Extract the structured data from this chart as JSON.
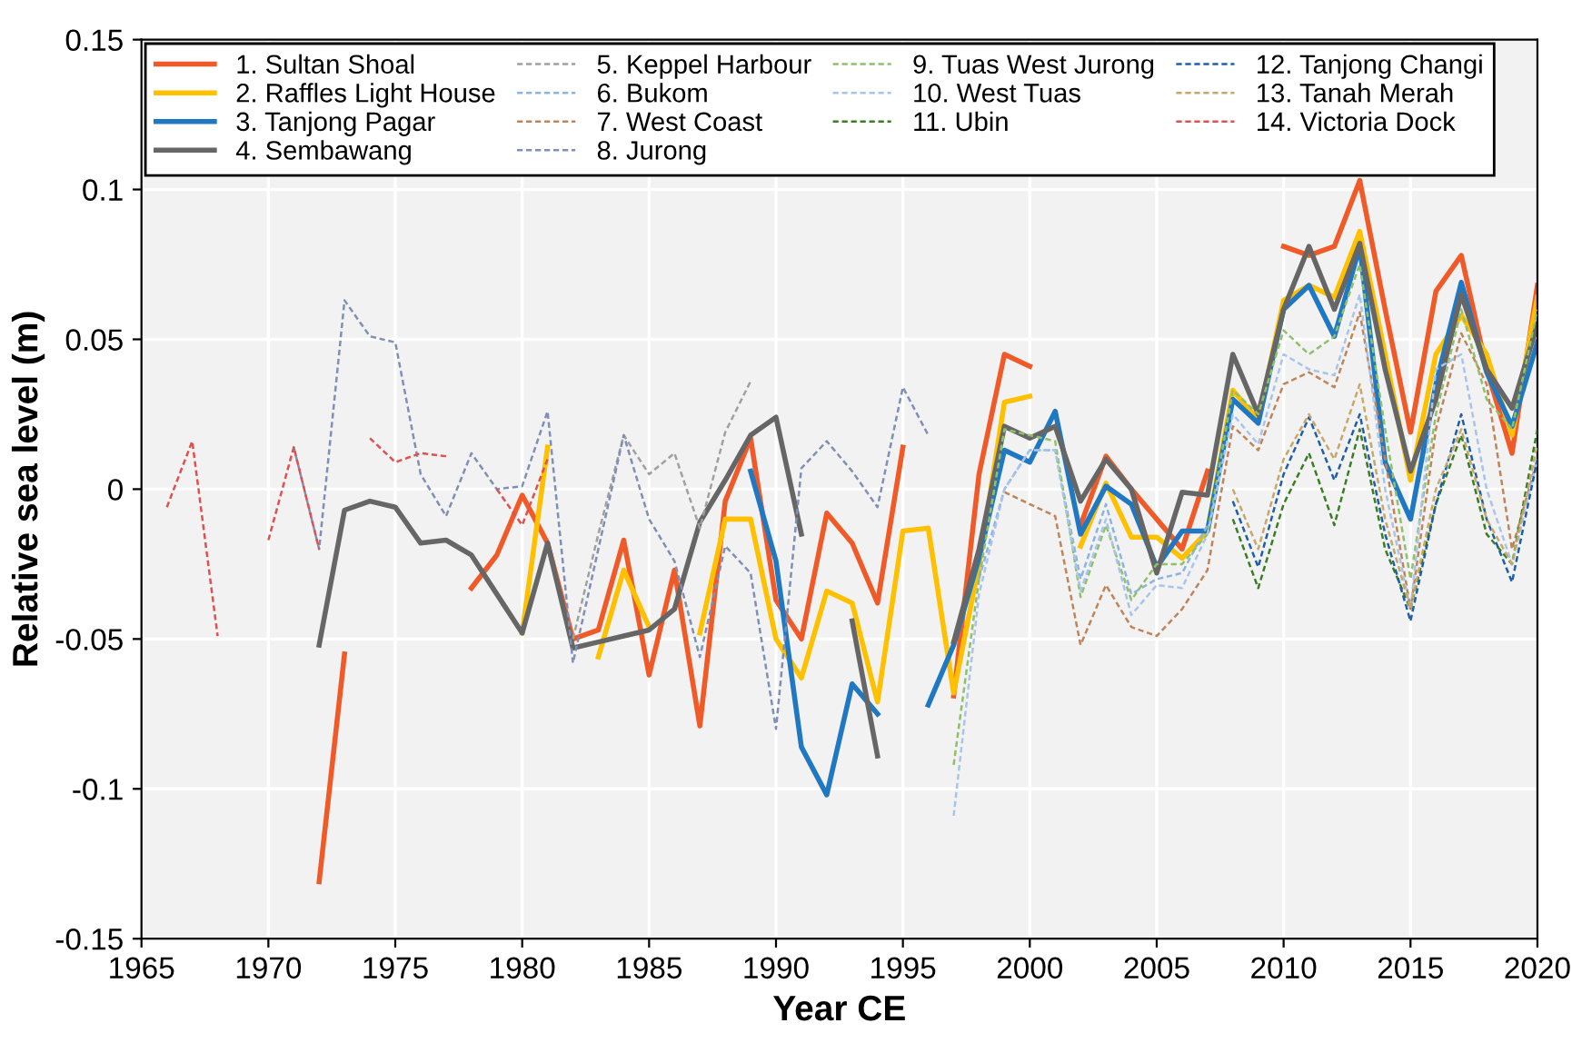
{
  "chart_data": {
    "type": "line",
    "xlabel": "Year CE",
    "ylabel": "Relative sea level (m)",
    "xlim": [
      1965,
      2020
    ],
    "ylim": [
      -0.15,
      0.15
    ],
    "xticks": [
      1965,
      1970,
      1975,
      1980,
      1985,
      1990,
      1995,
      2000,
      2005,
      2010,
      2015,
      2020
    ],
    "yticks": [
      -0.15,
      -0.1,
      -0.05,
      0,
      0.05,
      0.1,
      0.15
    ],
    "grid": true,
    "legend": "top left",
    "marker": "none",
    "series": [
      {
        "name": "1. Sultan Shoal",
        "color": "#f05a28",
        "line_style": "solid",
        "x": [
          1972,
          1973,
          1974,
          1975,
          1976,
          1977,
          1978,
          1979,
          1980,
          1981,
          1982,
          1983,
          1984,
          1985,
          1986,
          1987,
          1988,
          1989,
          1990,
          1991,
          1992,
          1993,
          1994,
          1995,
          1996,
          1997,
          1998,
          1999,
          2000,
          2001,
          2002,
          2003,
          2004,
          2005,
          2006,
          2007,
          2008,
          2009,
          2010,
          2011,
          2012,
          2013,
          2014,
          2015,
          2016,
          2017,
          2018,
          2019,
          2020
        ],
        "values": [
          -0.131,
          -0.055,
          null,
          null,
          null,
          null,
          -0.033,
          -0.022,
          -0.002,
          -0.018,
          -0.05,
          -0.047,
          -0.017,
          -0.062,
          -0.027,
          -0.079,
          -0.004,
          0.017,
          -0.037,
          -0.05,
          -0.008,
          -0.018,
          -0.038,
          0.014,
          null,
          -0.069,
          0.005,
          0.045,
          0.041,
          null,
          -0.012,
          0.011,
          0.0,
          -0.01,
          -0.02,
          0.006,
          null,
          null,
          0.081,
          0.078,
          0.081,
          0.103,
          0.06,
          0.019,
          0.066,
          0.078,
          0.04,
          0.012,
          0.068
        ]
      },
      {
        "name": "2. Raffles Light House",
        "color": "#ffc000",
        "line_style": "solid",
        "x": [
          1980,
          1981,
          1982,
          1983,
          1984,
          1985,
          1986,
          1987,
          1988,
          1989,
          1990,
          1991,
          1992,
          1993,
          1994,
          1995,
          1996,
          1997,
          1998,
          1999,
          2000,
          2001,
          2002,
          2003,
          2004,
          2005,
          2006,
          2007,
          2008,
          2009,
          2010,
          2011,
          2012,
          2013,
          2014,
          2015,
          2016,
          2017,
          2018,
          2019,
          2020
        ],
        "values": [
          -0.048,
          0.014,
          null,
          -0.056,
          -0.027,
          -0.046,
          null,
          -0.048,
          -0.01,
          -0.01,
          -0.05,
          -0.063,
          -0.034,
          -0.038,
          -0.071,
          -0.014,
          -0.013,
          -0.068,
          -0.025,
          0.029,
          0.031,
          null,
          -0.019,
          0.002,
          -0.016,
          -0.016,
          -0.023,
          -0.014,
          0.033,
          0.023,
          0.063,
          0.068,
          0.064,
          0.086,
          0.045,
          0.003,
          0.045,
          0.058,
          0.045,
          0.018,
          0.064
        ]
      },
      {
        "name": "3. Tanjong Pagar",
        "color": "#1f78c1",
        "line_style": "solid",
        "x": [
          1989,
          1990,
          1991,
          1992,
          1993,
          1994,
          1995,
          1996,
          1997,
          1998,
          1999,
          2000,
          2001,
          2002,
          2003,
          2004,
          2005,
          2006,
          2007,
          2008,
          2009,
          2010,
          2011,
          2012,
          2013,
          2014,
          2015,
          2016,
          2017,
          2018,
          2019,
          2020
        ],
        "values": [
          0.006,
          -0.024,
          -0.086,
          -0.102,
          -0.065,
          -0.075,
          null,
          -0.072,
          -0.052,
          -0.023,
          0.013,
          0.009,
          0.026,
          -0.015,
          0.001,
          -0.005,
          -0.026,
          -0.014,
          -0.014,
          0.03,
          0.022,
          0.06,
          0.068,
          0.051,
          0.081,
          0.009,
          -0.01,
          0.035,
          0.069,
          0.039,
          0.021,
          0.049
        ]
      },
      {
        "name": "4. Sembawang",
        "color": "#666666",
        "line_style": "solid",
        "x": [
          1972,
          1973,
          1974,
          1975,
          1976,
          1977,
          1978,
          1979,
          1980,
          1981,
          1982,
          1983,
          1984,
          1985,
          1986,
          1987,
          1988,
          1989,
          1990,
          1991,
          1992,
          1993,
          1994,
          1995,
          1996,
          1997,
          1998,
          1999,
          2000,
          2001,
          2002,
          2003,
          2004,
          2005,
          2006,
          2007,
          2008,
          2009,
          2010,
          2011,
          2012,
          2013,
          2014,
          2015,
          2016,
          2017,
          2018,
          2019,
          2020
        ],
        "values": [
          -0.052,
          -0.007,
          -0.004,
          -0.006,
          -0.018,
          -0.017,
          -0.022,
          -0.035,
          -0.048,
          -0.018,
          -0.053,
          -0.051,
          -0.049,
          -0.047,
          -0.04,
          -0.011,
          0.003,
          0.018,
          0.024,
          -0.015,
          null,
          -0.044,
          -0.089,
          null,
          null,
          -0.051,
          -0.02,
          0.021,
          0.017,
          0.021,
          -0.004,
          0.01,
          0.0,
          -0.028,
          -0.001,
          -0.002,
          0.045,
          0.025,
          0.06,
          0.081,
          0.06,
          0.082,
          0.04,
          0.006,
          0.03,
          0.065,
          0.04,
          0.027,
          0.055
        ]
      },
      {
        "name": "5. Keppel Harbour",
        "color": "#a0a0a0",
        "line_style": "dashed",
        "x": [
          1982,
          1983,
          1984,
          1985,
          1986,
          1987,
          1988,
          1989
        ],
        "values": [
          -0.05,
          -0.015,
          0.018,
          0.005,
          0.012,
          -0.013,
          0.019,
          0.036
        ]
      },
      {
        "name": "6. Bukom",
        "color": "#8db3e2",
        "line_style": "dashed",
        "x": [
          1998,
          1999,
          2000,
          2001,
          2002,
          2003,
          2004,
          2005,
          2006,
          2007
        ],
        "values": [
          -0.03,
          0.0,
          0.013,
          0.013,
          -0.03,
          -0.005,
          -0.035,
          -0.03,
          -0.028,
          -0.012
        ]
      },
      {
        "name": "7. West Coast",
        "color": "#c0845a",
        "line_style": "dashed",
        "x": [
          1999,
          2000,
          2001,
          2002,
          2003,
          2004,
          2005,
          2006,
          2007,
          2008,
          2009,
          2010,
          2011,
          2012,
          2013,
          2014,
          2015,
          2016,
          2017,
          2018,
          2019,
          2020
        ],
        "values": [
          -0.001,
          -0.005,
          -0.009,
          -0.052,
          -0.032,
          -0.046,
          -0.049,
          -0.04,
          -0.027,
          0.021,
          0.013,
          0.035,
          0.039,
          0.034,
          0.059,
          0.01,
          -0.04,
          0.02,
          0.052,
          0.035,
          -0.02,
          0.01
        ]
      },
      {
        "name": "8. Jurong",
        "color": "#7f8fb5",
        "line_style": "dashed",
        "x": [
          1971,
          1972,
          1973,
          1974,
          1975,
          1976,
          1977,
          1978,
          1979,
          1980,
          1981,
          1982,
          1983,
          1984,
          1985,
          1986,
          1987,
          1988,
          1989,
          1990,
          1991,
          1992,
          1993,
          1994,
          1995,
          1996
        ],
        "values": [
          0.014,
          -0.02,
          0.063,
          0.051,
          0.049,
          0.005,
          -0.009,
          0.012,
          0.0,
          0.001,
          0.026,
          -0.058,
          -0.02,
          0.018,
          -0.01,
          -0.024,
          -0.056,
          -0.019,
          -0.028,
          -0.08,
          0.007,
          0.016,
          0.006,
          -0.006,
          0.034,
          0.018
        ]
      },
      {
        "name": "9. Tuas West Jurong",
        "color": "#8fc06a",
        "line_style": "dashed",
        "x": [
          1997,
          1998,
          1999,
          2000,
          2001,
          2002,
          2003,
          2004,
          2005,
          2006,
          2007,
          2008,
          2009,
          2010,
          2011,
          2012,
          2013,
          2014,
          2015,
          2016,
          2017,
          2018,
          2019,
          2020
        ],
        "values": [
          -0.092,
          -0.03,
          0.02,
          0.018,
          0.016,
          -0.036,
          -0.012,
          -0.037,
          -0.025,
          -0.025,
          -0.015,
          0.033,
          0.025,
          0.053,
          0.045,
          0.051,
          0.075,
          0.02,
          -0.03,
          0.025,
          0.06,
          0.03,
          0.02,
          0.06
        ]
      },
      {
        "name": "10. West Tuas",
        "color": "#a9c4eb",
        "line_style": "dashed",
        "x": [
          1997,
          1998,
          1999,
          2000,
          2001,
          2002,
          2003,
          2004,
          2005,
          2006,
          2007,
          2008,
          2009,
          2010,
          2011,
          2012,
          2013,
          2014,
          2015,
          2016,
          2017,
          2018,
          2019,
          2020
        ],
        "values": [
          -0.109,
          -0.035,
          0.0,
          0.013,
          0.013,
          -0.034,
          -0.01,
          -0.042,
          -0.032,
          -0.033,
          -0.015,
          0.025,
          0.015,
          0.045,
          0.04,
          0.038,
          0.065,
          0.0,
          -0.04,
          0.04,
          0.045,
          0.0,
          -0.025,
          0.01
        ]
      },
      {
        "name": "11. Ubin",
        "color": "#3a7d22",
        "line_style": "dashed",
        "x": [
          2008,
          2009,
          2010,
          2011,
          2012,
          2013,
          2014,
          2015,
          2016,
          2017,
          2018,
          2019,
          2020
        ],
        "values": [
          -0.01,
          -0.033,
          -0.005,
          0.012,
          -0.012,
          0.02,
          -0.02,
          -0.04,
          -0.005,
          0.018,
          -0.015,
          -0.025,
          0.02
        ]
      },
      {
        "name": "12. Tanjong Changi",
        "color": "#1f5fa8",
        "line_style": "dashed",
        "x": [
          2008,
          2009,
          2010,
          2011,
          2012,
          2013,
          2014,
          2015,
          2016,
          2017,
          2018,
          2019,
          2020
        ],
        "values": [
          -0.004,
          -0.026,
          0.005,
          0.024,
          0.003,
          0.025,
          -0.015,
          -0.044,
          -0.005,
          0.025,
          -0.01,
          -0.031,
          0.01
        ]
      },
      {
        "name": "13. Tanah Merah",
        "color": "#c8a86a",
        "line_style": "dashed",
        "x": [
          2008,
          2009,
          2010,
          2011,
          2012,
          2013,
          2014,
          2015,
          2016,
          2017,
          2018,
          2019,
          2020
        ],
        "values": [
          0.0,
          -0.02,
          0.01,
          0.025,
          0.01,
          0.035,
          -0.01,
          -0.04,
          0.0,
          0.02,
          -0.01,
          -0.025,
          0.015
        ]
      },
      {
        "name": "14. Victoria Dock",
        "color": "#e05050",
        "line_style": "dashed",
        "x": [
          1966,
          1967,
          1968,
          1969,
          1970,
          1971,
          1972,
          1973,
          1974,
          1975,
          1976,
          1977,
          1978,
          1979,
          1980,
          1981
        ],
        "values": [
          -0.006,
          0.016,
          -0.049,
          null,
          -0.017,
          0.014,
          -0.02,
          null,
          0.017,
          0.009,
          0.012,
          0.011,
          null,
          0.0,
          -0.012,
          0.01
        ]
      }
    ]
  }
}
